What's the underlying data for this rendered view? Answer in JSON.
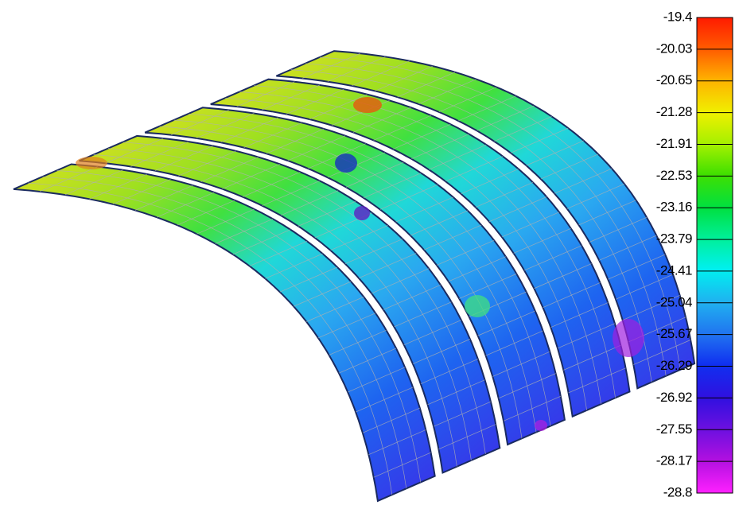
{
  "colorbar": {
    "labels": [
      "-19.4",
      "-20.03",
      "-20.65",
      "-21.28",
      "-21.91",
      "-22.53",
      "-23.16",
      "-23.79",
      "-24.41",
      "-25.04",
      "-25.67",
      "-26.29",
      "-26.92",
      "-27.55",
      "-28.17",
      "-28.8"
    ]
  }
}
